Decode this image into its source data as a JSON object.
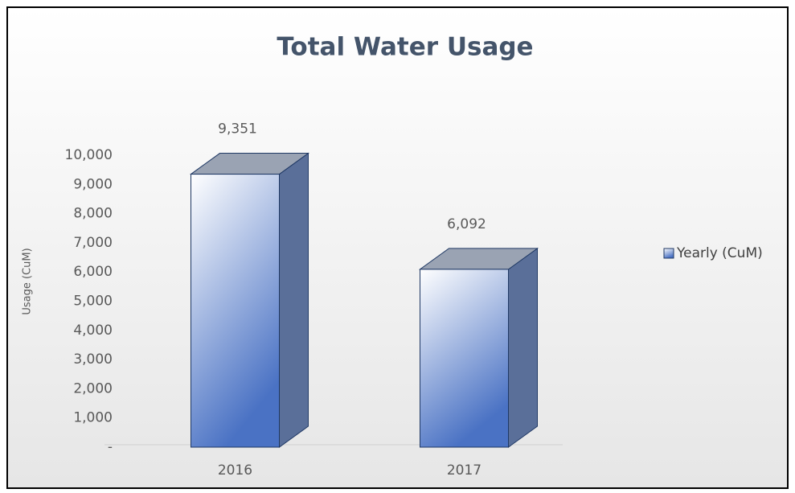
{
  "chart_data": {
    "type": "bar3d",
    "title": "Total Water Usage",
    "y_axis_label": "Usage (CuM)",
    "categories": [
      "2016",
      "2017"
    ],
    "series": [
      {
        "name": "Yearly (CuM)",
        "color": "#4a72c4",
        "values": [
          9351,
          6092
        ],
        "value_labels": [
          "9,351",
          "6,092"
        ]
      }
    ],
    "ylim": [
      0,
      10000
    ],
    "yticks": [
      {
        "value": 0,
        "label": "-"
      },
      {
        "value": 1000,
        "label": "1,000"
      },
      {
        "value": 2000,
        "label": "2,000"
      },
      {
        "value": 3000,
        "label": "3,000"
      },
      {
        "value": 4000,
        "label": "4,000"
      },
      {
        "value": 5000,
        "label": "5,000"
      },
      {
        "value": 6000,
        "label": "6,000"
      },
      {
        "value": 7000,
        "label": "7,000"
      },
      {
        "value": 8000,
        "label": "8,000"
      },
      {
        "value": 9000,
        "label": "9,000"
      },
      {
        "value": 10000,
        "label": "10,000"
      }
    ],
    "legend": "right"
  }
}
